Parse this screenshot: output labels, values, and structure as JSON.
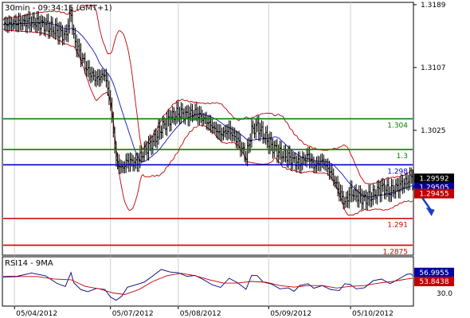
{
  "chart_data": [
    {
      "type": "candlestick",
      "title": "30min - 09:34:15 (GMT+1)",
      "x_tick_labels": [
        "05/04/2012",
        "05/07/2012",
        "05/08/2012",
        "05/09/2012",
        "05/10/2012"
      ],
      "y_tick_labels": [
        "1.3189",
        "1.3107",
        "1.3025"
      ],
      "ylim": [
        1.2862,
        1.3192
      ],
      "grid": "vertical",
      "horizontal_levels": [
        {
          "label": "1.304",
          "value": 1.304,
          "color": "#008000"
        },
        {
          "label": "1.3",
          "value": 1.3,
          "color": "#008000"
        },
        {
          "label": "1.298",
          "value": 1.298,
          "color": "#0000c0"
        },
        {
          "label": "1.291",
          "value": 1.291,
          "color": "#d00000"
        },
        {
          "label": "1.2875",
          "value": 1.2875,
          "color": "#d00000"
        }
      ],
      "price_badges": [
        {
          "label": "1.29592",
          "value": 1.29592,
          "color": "#000000"
        },
        {
          "label": "1.29505",
          "value": 1.29505,
          "color": "#0000a0"
        },
        {
          "label": "1.29455",
          "value": 1.29455,
          "color": "#c00000"
        }
      ],
      "close_path": [
        [
          0,
          1.3163
        ],
        [
          10,
          1.3165
        ],
        [
          20,
          1.3167
        ],
        [
          30,
          1.3162
        ],
        [
          38,
          1.3155
        ],
        [
          44,
          1.3148
        ],
        [
          48,
          1.3178
        ],
        [
          50,
          1.3145
        ],
        [
          55,
          1.3122
        ],
        [
          60,
          1.3102
        ],
        [
          66,
          1.3092
        ],
        [
          72,
          1.3098
        ],
        [
          76,
          1.306
        ],
        [
          80,
          1.2985
        ],
        [
          84,
          1.2975
        ],
        [
          88,
          1.2985
        ],
        [
          94,
          1.2982
        ],
        [
          100,
          1.2998
        ],
        [
          106,
          1.301
        ],
        [
          112,
          1.3028
        ],
        [
          118,
          1.304
        ],
        [
          124,
          1.3048
        ],
        [
          130,
          1.3045
        ],
        [
          136,
          1.3048
        ],
        [
          142,
          1.304
        ],
        [
          148,
          1.303
        ],
        [
          154,
          1.302
        ],
        [
          160,
          1.3025
        ],
        [
          166,
          1.3012
        ],
        [
          172,
          1.299
        ],
        [
          176,
          1.3025
        ],
        [
          180,
          1.303
        ],
        [
          184,
          1.302
        ],
        [
          190,
          1.3005
        ],
        [
          196,
          1.2995
        ],
        [
          202,
          1.299
        ],
        [
          206,
          1.2985
        ],
        [
          210,
          1.2982
        ],
        [
          216,
          1.2992
        ],
        [
          220,
          1.2978
        ],
        [
          226,
          1.2985
        ],
        [
          232,
          1.297
        ],
        [
          238,
          1.2945
        ],
        [
          242,
          1.293
        ],
        [
          246,
          1.2945
        ],
        [
          250,
          1.294
        ],
        [
          256,
          1.2935
        ],
        [
          262,
          1.294
        ],
        [
          268,
          1.295
        ],
        [
          274,
          1.2945
        ],
        [
          280,
          1.2952
        ],
        [
          286,
          1.2958
        ],
        [
          289,
          1.2965
        ],
        [
          290,
          1.2959
        ]
      ],
      "forecast_arrow": [
        [
          290,
          1.2955
        ],
        [
          296,
          1.2915
        ]
      ]
    },
    {
      "type": "line",
      "title": "RSI14 - 9MA",
      "y_tick_labels": [
        "30.0"
      ],
      "ylim": [
        20,
        80
      ],
      "series": [
        {
          "name": "",
          "color": "#000080",
          "values": [
            [
              0,
              56
            ],
            [
              10,
              55
            ],
            [
              20,
              58
            ],
            [
              30,
              54
            ],
            [
              38,
              50
            ],
            [
              44,
              42
            ],
            [
              48,
              62
            ],
            [
              50,
              46
            ],
            [
              55,
              38
            ],
            [
              60,
              36
            ],
            [
              66,
              44
            ],
            [
              72,
              42
            ],
            [
              76,
              34
            ],
            [
              80,
              28
            ],
            [
              84,
              30
            ],
            [
              88,
              40
            ],
            [
              94,
              45
            ],
            [
              100,
              52
            ],
            [
              106,
              58
            ],
            [
              112,
              62
            ],
            [
              118,
              60
            ],
            [
              124,
              63
            ],
            [
              130,
              58
            ],
            [
              136,
              55
            ],
            [
              142,
              50
            ],
            [
              148,
              48
            ],
            [
              154,
              45
            ],
            [
              160,
              52
            ],
            [
              166,
              46
            ],
            [
              172,
              42
            ],
            [
              176,
              56
            ],
            [
              180,
              54
            ],
            [
              184,
              48
            ],
            [
              190,
              44
            ],
            [
              196,
              42
            ],
            [
              202,
              45
            ],
            [
              206,
              40
            ],
            [
              210,
              44
            ],
            [
              216,
              50
            ],
            [
              220,
              42
            ],
            [
              226,
              48
            ],
            [
              232,
              40
            ],
            [
              238,
              36
            ],
            [
              242,
              46
            ],
            [
              246,
              48
            ],
            [
              250,
              44
            ],
            [
              256,
              43
            ],
            [
              262,
              48
            ],
            [
              268,
              52
            ],
            [
              274,
              50
            ],
            [
              280,
              54
            ],
            [
              286,
              56
            ],
            [
              289,
              62
            ],
            [
              290,
              57
            ]
          ]
        },
        {
          "name": "",
          "color": "#c00000",
          "values": [
            [
              0,
              55
            ],
            [
              12,
              56
            ],
            [
              24,
              56
            ],
            [
              36,
              53
            ],
            [
              48,
              52
            ],
            [
              58,
              44
            ],
            [
              68,
              41
            ],
            [
              78,
              36
            ],
            [
              86,
              34
            ],
            [
              96,
              40
            ],
            [
              106,
              50
            ],
            [
              116,
              57
            ],
            [
              126,
              60
            ],
            [
              136,
              57
            ],
            [
              146,
              52
            ],
            [
              156,
              48
            ],
            [
              166,
              48
            ],
            [
              176,
              50
            ],
            [
              186,
              49
            ],
            [
              196,
              45
            ],
            [
              206,
              43
            ],
            [
              216,
              45
            ],
            [
              226,
              45
            ],
            [
              236,
              42
            ],
            [
              246,
              44
            ],
            [
              256,
              45
            ],
            [
              266,
              48
            ],
            [
              276,
              50
            ],
            [
              286,
              53
            ],
            [
              290,
              54
            ]
          ]
        }
      ],
      "price_badges": [
        {
          "label": "56.9955",
          "value": 56.9955,
          "color": "#0000a0"
        },
        {
          "label": "53.8438",
          "value": 53.8438,
          "color": "#c00000"
        }
      ]
    }
  ],
  "colors": {
    "upper_band": "#c00000",
    "lower_band": "#c00000",
    "moving_average": "#1010c0",
    "candle": "#000000",
    "arrow": "#1a3ecc",
    "grid": "#cfcfcf"
  }
}
